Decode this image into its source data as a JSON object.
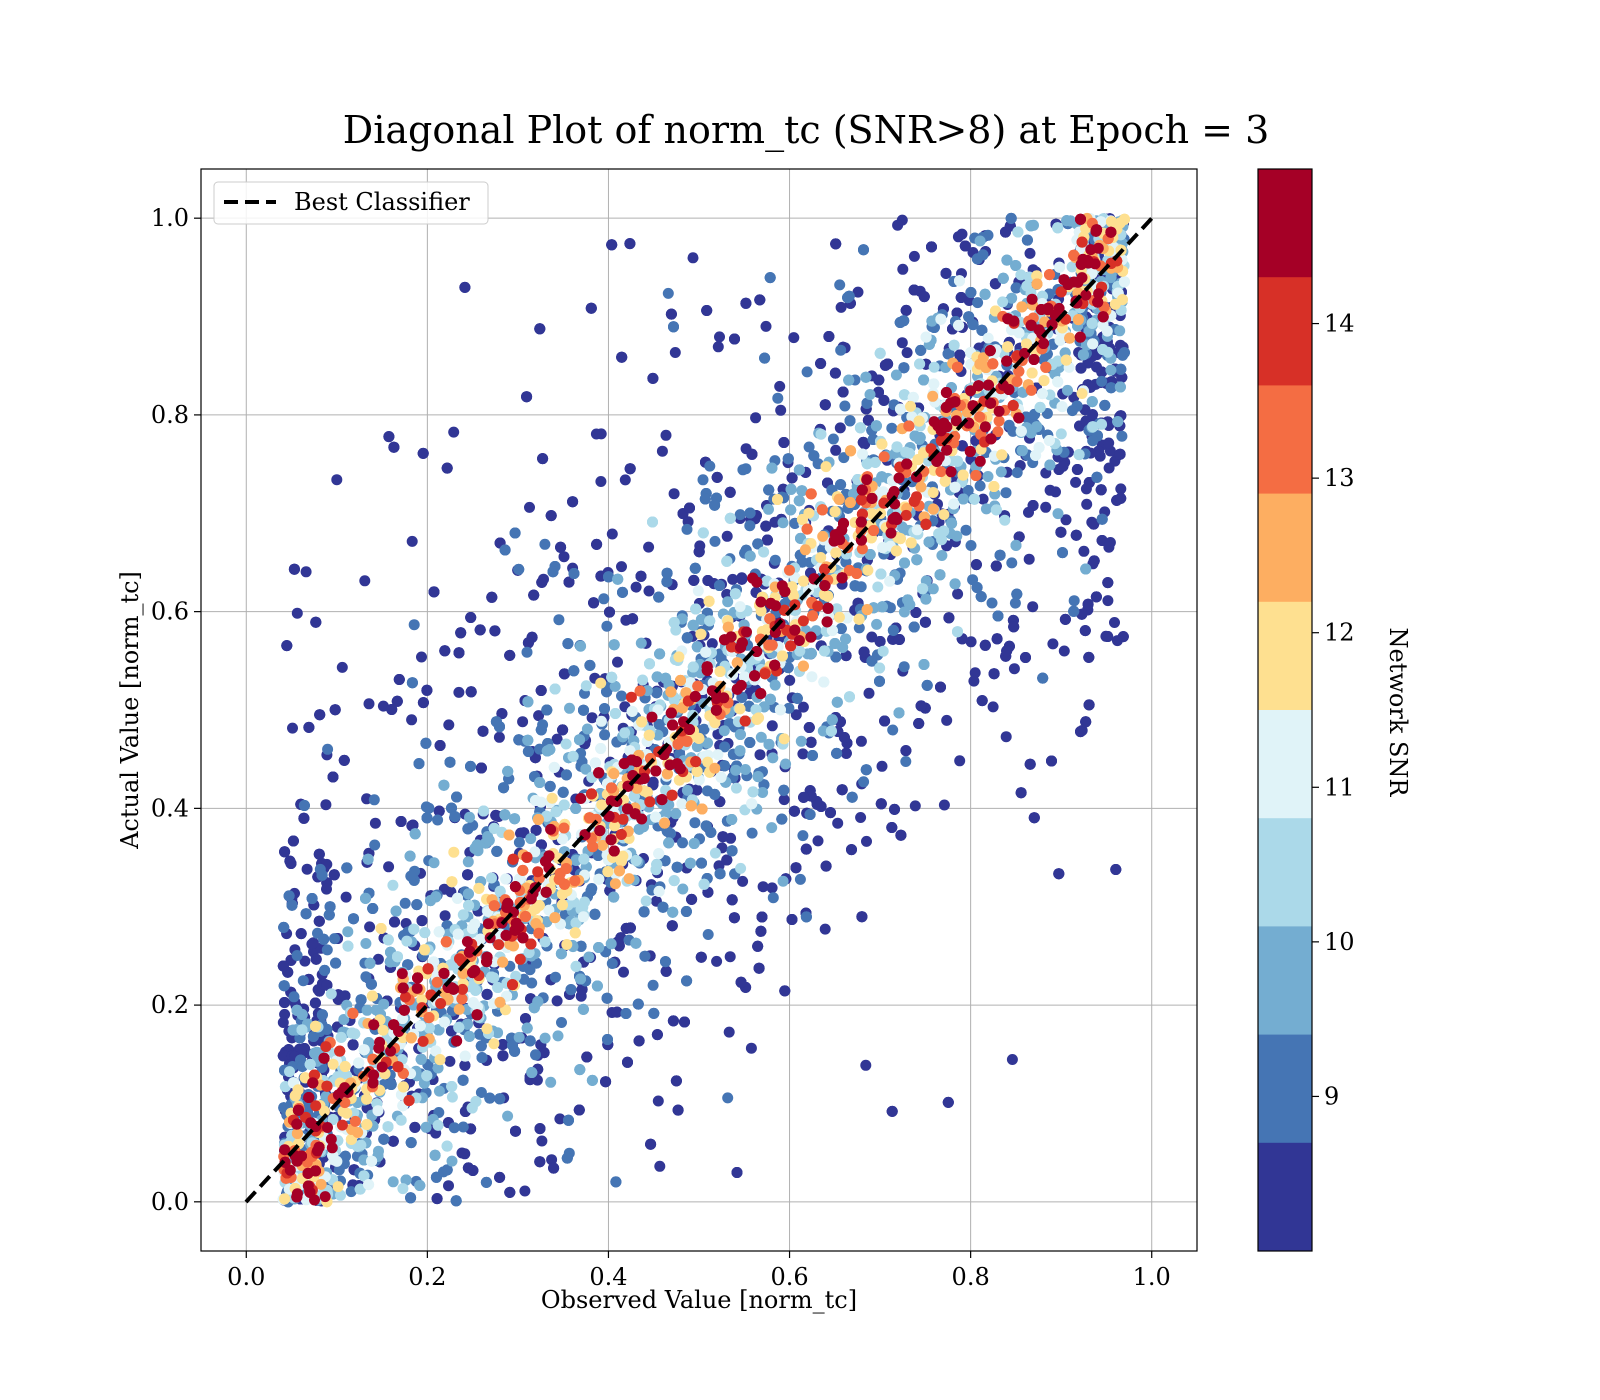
{
  "chart_data": {
    "type": "scatter",
    "title": "Diagonal Plot of norm_tc (SNR>8) at Epoch = 3",
    "xlabel": "Observed Value [norm_tc]",
    "ylabel": "Actual Value [norm_tc]",
    "xlim": [
      -0.05,
      1.05
    ],
    "ylim": [
      -0.05,
      1.05
    ],
    "xticks": [
      "0.0",
      "0.2",
      "0.4",
      "0.6",
      "0.8",
      "1.0"
    ],
    "yticks": [
      "0.0",
      "0.2",
      "0.4",
      "0.6",
      "0.8",
      "1.0"
    ],
    "grid": true,
    "legend": {
      "placement": "upper-left",
      "entries": [
        "Best Classifier"
      ]
    },
    "reference_line": {
      "name": "Best Classifier",
      "style": "dashed",
      "color": "#000000",
      "x": [
        0,
        1
      ],
      "y": [
        0,
        1
      ]
    },
    "colorbar": {
      "label": "Network SNR",
      "range": [
        8,
        15
      ],
      "ticks": [
        "9",
        "10",
        "11",
        "12",
        "13",
        "14"
      ],
      "colors": [
        "#313695",
        "#4575b4",
        "#74add1",
        "#abd9e9",
        "#e0f3f8",
        "#fee090",
        "#fdae61",
        "#f46d43",
        "#d73027",
        "#a50026"
      ]
    },
    "series": [
      {
        "description_of_distribution": "points concentrated along the diagonal y = x; high-SNR (dark red) points form a tight band, low-SNR (blue) points scatter widely off the diagonal",
        "x_range": [
          0.04,
          0.97
        ],
        "y_range": [
          0.0,
          1.0
        ]
      }
    ]
  }
}
